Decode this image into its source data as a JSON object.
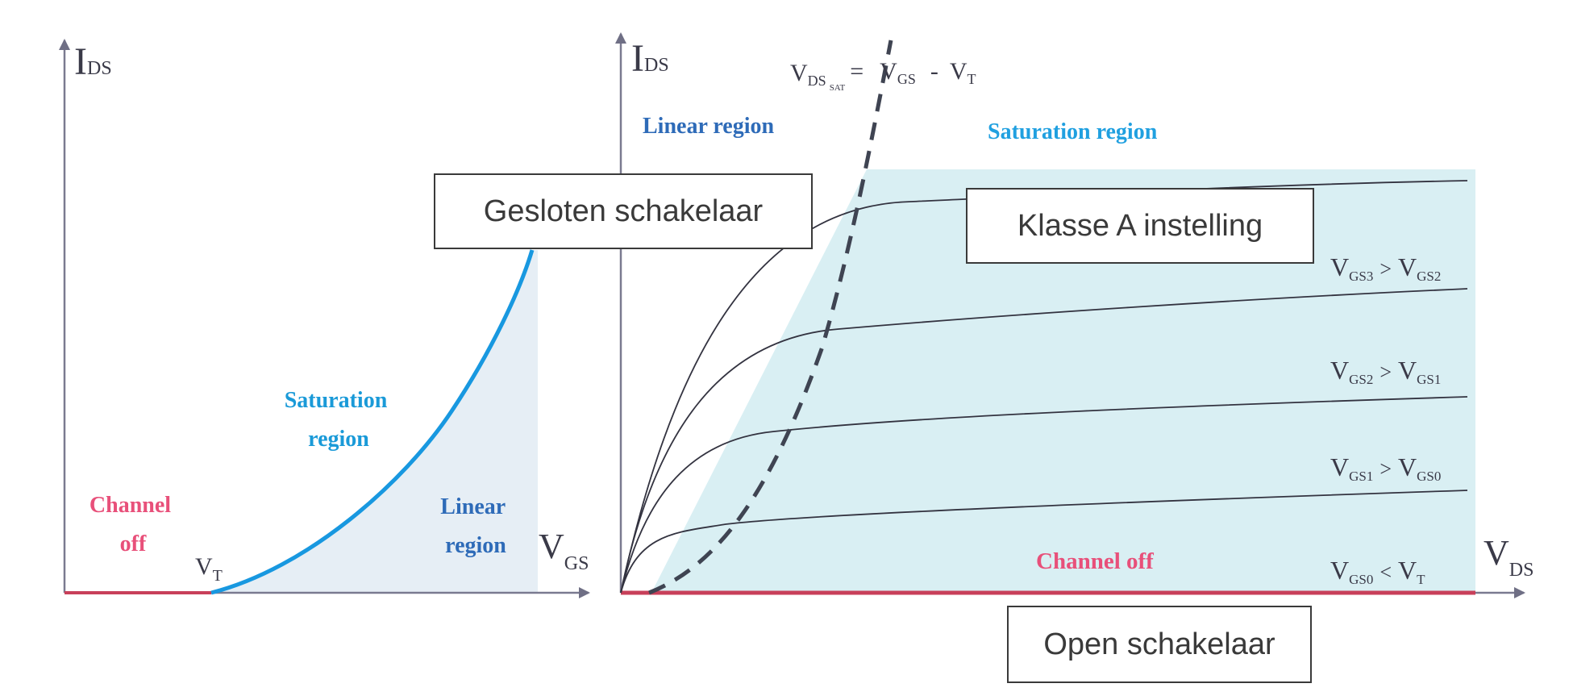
{
  "colors": {
    "axis": "#7a7a90",
    "curve": "#333340",
    "shade": "#d9eff3",
    "shade_left": "#e6eef5",
    "transfer_curve": "#1898e0",
    "channel_off_line": "#c8405a",
    "channel_off_text": "#e8507a",
    "saturation_text_left": "#1a9ad8",
    "saturation_text_right": "#20a0e0",
    "linear_text": "#2e6bb8",
    "dashed": "#3f4452"
  },
  "left_plot": {
    "y_axis": {
      "main": "I",
      "sub": "DS"
    },
    "x_axis": {
      "main": "V",
      "sub": "GS"
    },
    "threshold": {
      "main": "V",
      "sub": "T"
    },
    "channel_off": [
      "Channel",
      "off"
    ],
    "saturation_region": [
      "Saturation",
      "region"
    ],
    "linear_region": [
      "Linear",
      "region"
    ]
  },
  "right_plot": {
    "y_axis": {
      "main": "I",
      "sub": "DS"
    },
    "x_axis": {
      "main": "V",
      "sub": "DS"
    },
    "vdsat_label": {
      "v1": "V",
      "s1": "DS",
      "s1b": "SAT",
      "eq": "=",
      "v2": "V",
      "s2": "GS",
      "minus": "-",
      "v3": "V",
      "s3": "T"
    },
    "linear_region": "Linear region",
    "saturation_region": "Saturation region",
    "channel_off": "Channel off",
    "curve_labels": [
      {
        "a": "V",
        "as": "GS3",
        "op": ">",
        "b": "V",
        "bs": "GS2"
      },
      {
        "a": "V",
        "as": "GS2",
        "op": ">",
        "b": "V",
        "bs": "GS1"
      },
      {
        "a": "V",
        "as": "GS1",
        "op": ">",
        "b": "V",
        "bs": "GS0"
      },
      {
        "a": "V",
        "as": "GS0",
        "op": "<",
        "b": "V",
        "bs": "T"
      }
    ]
  },
  "callouts": {
    "closed_switch": "Gesloten schakelaar",
    "class_a": "Klasse A instelling",
    "open_switch": "Open schakelaar"
  }
}
